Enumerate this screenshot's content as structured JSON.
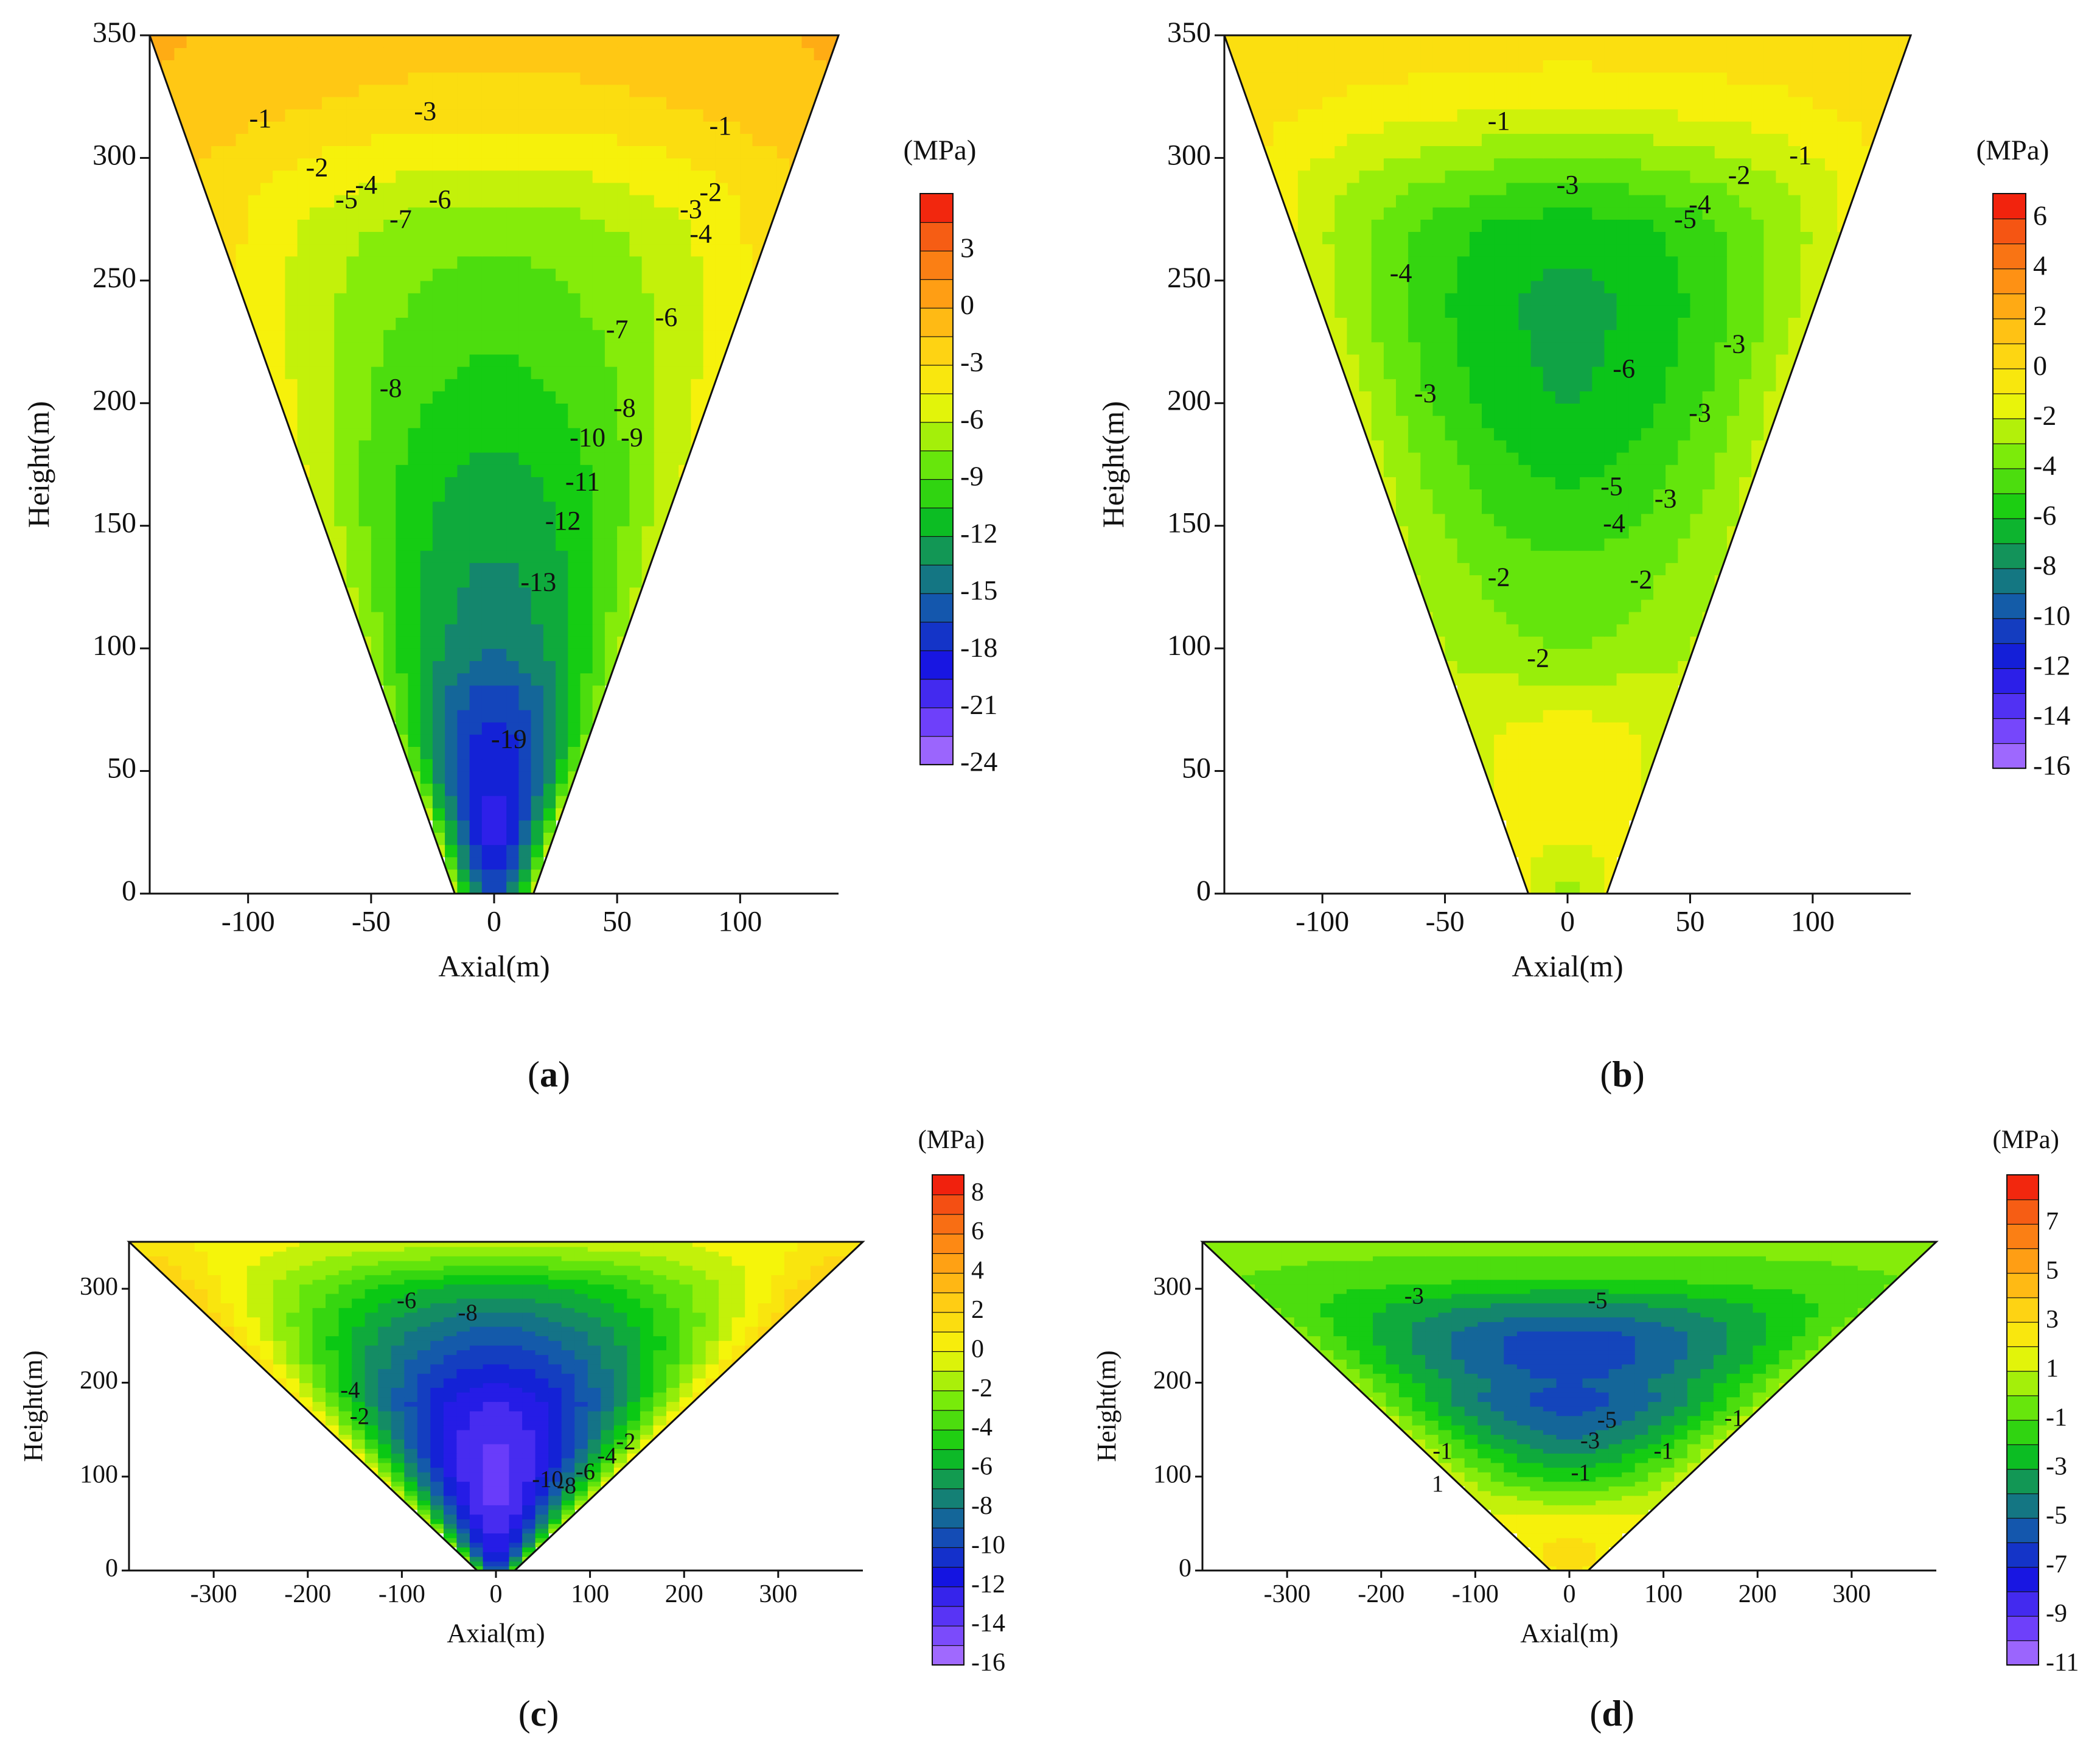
{
  "chart_data": [
    {
      "panel": "(a)",
      "caption_letter": "a",
      "type": "heatmap",
      "xlabel": "Axial(m)",
      "ylabel": "Height(m)",
      "xlim": [
        -140,
        140
      ],
      "ylim": [
        0,
        350
      ],
      "xticks": [
        -100,
        -50,
        0,
        50,
        100
      ],
      "yticks": [
        0,
        50,
        100,
        150,
        200,
        250,
        300,
        350
      ],
      "domain_shape": {
        "top_halfwidth": 140,
        "bottom_halfwidth": 16,
        "top_y": 350
      },
      "center_value": -13,
      "colorbar": {
        "unit": "(MPa)",
        "min": -24,
        "max": 6,
        "step": 1.5,
        "tick_values": [
          3,
          0,
          -3,
          -6,
          -9,
          -12,
          -15,
          -18,
          -21,
          -24
        ],
        "tick_labels": [
          "3",
          "0",
          "-3",
          "-6",
          "-9",
          "-12",
          "-15",
          "-18",
          "-21",
          "-24"
        ]
      },
      "field_profile": {
        "y": [
          0,
          20,
          40,
          60,
          80,
          100,
          130,
          160,
          200,
          240,
          270,
          290,
          320,
          350
        ],
        "center": [
          -16,
          -19,
          -19,
          -18,
          -16.5,
          -14,
          -13,
          -12,
          -10.5,
          -9,
          -8,
          -6,
          -3,
          -1.5
        ],
        "edge": [
          -6,
          -6,
          -7,
          -7.5,
          -7,
          -6.5,
          -6,
          -5.5,
          -4.5,
          -4,
          -3,
          -2.5,
          -1,
          -0.5
        ]
      },
      "contour_labels": [
        {
          "text": "-1",
          "x": -95,
          "y": 315
        },
        {
          "text": "-3",
          "x": -28,
          "y": 318
        },
        {
          "text": "-2",
          "x": -72,
          "y": 295
        },
        {
          "text": "-5",
          "x": -60,
          "y": 282
        },
        {
          "text": "-4",
          "x": -52,
          "y": 288
        },
        {
          "text": "-6",
          "x": -22,
          "y": 282
        },
        {
          "text": "-7",
          "x": -38,
          "y": 274
        },
        {
          "text": "-1",
          "x": 92,
          "y": 312
        },
        {
          "text": "-2",
          "x": 88,
          "y": 285
        },
        {
          "text": "-3",
          "x": 80,
          "y": 278
        },
        {
          "text": "-4",
          "x": 84,
          "y": 268
        },
        {
          "text": "-6",
          "x": 70,
          "y": 234
        },
        {
          "text": "-7",
          "x": 50,
          "y": 229
        },
        {
          "text": "-8",
          "x": -42,
          "y": 205
        },
        {
          "text": "-8",
          "x": 53,
          "y": 197
        },
        {
          "text": "-9",
          "x": 56,
          "y": 185
        },
        {
          "text": "-10",
          "x": 38,
          "y": 185
        },
        {
          "text": "-11",
          "x": 36,
          "y": 167
        },
        {
          "text": "-12",
          "x": 28,
          "y": 151
        },
        {
          "text": "-13",
          "x": 18,
          "y": 126
        },
        {
          "text": "-19",
          "x": 6,
          "y": 62
        }
      ]
    },
    {
      "panel": "(b)",
      "caption_letter": "b",
      "type": "heatmap",
      "xlabel": "Axial(m)",
      "ylabel": "Height(m)",
      "xlim": [
        -140,
        140
      ],
      "ylim": [
        0,
        350
      ],
      "xticks": [
        -100,
        -50,
        0,
        50,
        100
      ],
      "yticks": [
        0,
        50,
        100,
        150,
        200,
        250,
        300,
        350
      ],
      "domain_shape": {
        "top_halfwidth": 140,
        "bottom_halfwidth": 16,
        "top_y": 350
      },
      "colorbar": {
        "unit": "(MPa)",
        "min": -16,
        "max": 7,
        "step": 1,
        "tick_values": [
          6,
          4,
          2,
          0,
          -2,
          -4,
          -6,
          -8,
          -10,
          -12,
          -14,
          -16
        ],
        "tick_labels": [
          "6",
          "4",
          "2",
          "0",
          "-2",
          "-4",
          "-6",
          "-8",
          "-10",
          "-12",
          "-14",
          "-16"
        ]
      },
      "field_profile": {
        "y": [
          0,
          20,
          40,
          60,
          80,
          100,
          130,
          160,
          200,
          240,
          270,
          290,
          320,
          350
        ],
        "center": [
          -3,
          -1.5,
          -0.5,
          -0.5,
          -2,
          -3.5,
          -4.2,
          -5.3,
          -6.5,
          -6.8,
          -6.2,
          -4.5,
          -1.5,
          0.2
        ],
        "edge": [
          -1.5,
          -1,
          -1.5,
          -2,
          -2.2,
          -2.5,
          -2.5,
          -2.3,
          -2,
          -2,
          -1.5,
          -1,
          0,
          0.5
        ]
      },
      "contour_labels": [
        {
          "text": "-1",
          "x": -28,
          "y": 314
        },
        {
          "text": "-1",
          "x": 95,
          "y": 300
        },
        {
          "text": "-2",
          "x": 70,
          "y": 292
        },
        {
          "text": "-3",
          "x": 0,
          "y": 288
        },
        {
          "text": "-4",
          "x": 54,
          "y": 280
        },
        {
          "text": "-5",
          "x": 48,
          "y": 274
        },
        {
          "text": "-4",
          "x": -68,
          "y": 252
        },
        {
          "text": "-6",
          "x": 23,
          "y": 213
        },
        {
          "text": "-3",
          "x": -58,
          "y": 203
        },
        {
          "text": "-3",
          "x": 68,
          "y": 223
        },
        {
          "text": "-3",
          "x": 54,
          "y": 195
        },
        {
          "text": "-5",
          "x": 18,
          "y": 165
        },
        {
          "text": "-4",
          "x": 19,
          "y": 150
        },
        {
          "text": "-3",
          "x": 40,
          "y": 160
        },
        {
          "text": "-2",
          "x": -28,
          "y": 128
        },
        {
          "text": "-2",
          "x": 30,
          "y": 127
        },
        {
          "text": "-2",
          "x": -12,
          "y": 95
        }
      ]
    },
    {
      "panel": "(c)",
      "caption_letter": "c",
      "type": "heatmap",
      "xlabel": "Axial(m)",
      "ylabel": "Height(m)",
      "xlim": [
        -390,
        390
      ],
      "ylim": [
        0,
        350
      ],
      "xticks": [
        -300,
        -200,
        -100,
        0,
        100,
        200,
        300
      ],
      "yticks": [
        0,
        100,
        200,
        300
      ],
      "domain_shape": {
        "top_halfwidth": 390,
        "bottom_halfwidth": 20,
        "top_y": 350
      },
      "colorbar": {
        "unit": "(MPa)",
        "min": -16,
        "max": 9,
        "step": 1,
        "tick_values": [
          8,
          6,
          4,
          2,
          0,
          -2,
          -4,
          -6,
          -8,
          -10,
          -12,
          -14,
          -16
        ],
        "tick_labels": [
          "8",
          "6",
          "4",
          "2",
          "0",
          "-2",
          "-4",
          "-6",
          "-8",
          "-10",
          "-12",
          "-14",
          "-16"
        ]
      },
      "field_profile": {
        "y": [
          0,
          20,
          60,
          100,
          140,
          180,
          220,
          260,
          300,
          330,
          350
        ],
        "center": [
          -10,
          -12,
          -13.5,
          -14,
          -13.5,
          -12.5,
          -10.5,
          -8.5,
          -6,
          -3,
          -1
        ],
        "edge": [
          -3,
          -2,
          -1,
          0,
          0.5,
          1,
          1.5,
          2,
          2.5,
          2,
          1
        ]
      },
      "contour_labels": [
        {
          "text": "-6",
          "x": -95,
          "y": 285
        },
        {
          "text": "-8",
          "x": -30,
          "y": 272
        },
        {
          "text": "-4",
          "x": -155,
          "y": 190
        },
        {
          "text": "-2",
          "x": -145,
          "y": 162
        },
        {
          "text": "-10",
          "x": 55,
          "y": 95
        },
        {
          "text": "-8",
          "x": 75,
          "y": 88
        },
        {
          "text": "-6",
          "x": 95,
          "y": 103
        },
        {
          "text": "-4",
          "x": 118,
          "y": 120
        },
        {
          "text": "-2",
          "x": 138,
          "y": 135
        }
      ]
    },
    {
      "panel": "(d)",
      "caption_letter": "d",
      "type": "heatmap",
      "xlabel": "Axial(m)",
      "ylabel": "Height(m)",
      "xlim": [
        -390,
        390
      ],
      "ylim": [
        0,
        350
      ],
      "xticks": [
        -300,
        -200,
        -100,
        0,
        100,
        200,
        300
      ],
      "yticks": [
        0,
        100,
        200,
        300
      ],
      "domain_shape": {
        "top_halfwidth": 390,
        "bottom_halfwidth": 20,
        "top_y": 350
      },
      "colorbar": {
        "unit": "(MPa)",
        "min": -11,
        "max": 9,
        "step": 1,
        "tick_values": [
          7,
          5,
          3,
          1,
          -1,
          -3,
          -5,
          -7,
          -9,
          -11
        ],
        "tick_labels": [
          "7",
          "5",
          "3",
          "1",
          "-1",
          "-3",
          "-5",
          "-7",
          "-9",
          "-11"
        ]
      },
      "field_profile": {
        "y": [
          0,
          20,
          60,
          100,
          140,
          180,
          200,
          220,
          250,
          280,
          310,
          350
        ],
        "center": [
          3.5,
          3,
          1.5,
          -2,
          -4.5,
          -6,
          -5.5,
          -6,
          -6,
          -4,
          -1.5,
          0
        ],
        "edge": [
          2,
          2,
          1.5,
          1,
          1,
          0.5,
          0.5,
          0,
          0,
          -0.5,
          -0.5,
          0
        ]
      },
      "contour_labels": [
        {
          "text": "-3",
          "x": -165,
          "y": 290
        },
        {
          "text": "-5",
          "x": 30,
          "y": 285
        },
        {
          "text": "-5",
          "x": 40,
          "y": 158
        },
        {
          "text": "-3",
          "x": 22,
          "y": 136
        },
        {
          "text": "-1",
          "x": 12,
          "y": 102
        },
        {
          "text": "-1",
          "x": -135,
          "y": 125
        },
        {
          "text": "1",
          "x": -140,
          "y": 90
        },
        {
          "text": "-1",
          "x": 100,
          "y": 125
        },
        {
          "text": "-1",
          "x": 175,
          "y": 160
        }
      ]
    }
  ]
}
